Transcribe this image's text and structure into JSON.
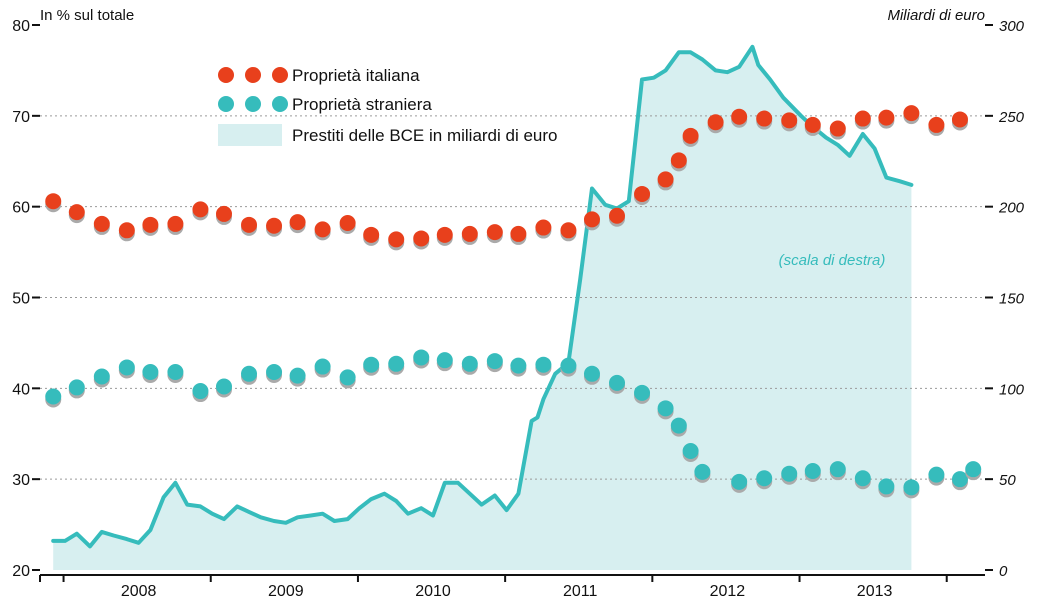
{
  "chart_data": {
    "type": "line",
    "left_axis": {
      "label": "In % sul totale",
      "ticks": [
        "20",
        "30",
        "40",
        "50",
        "60",
        "70",
        "80"
      ],
      "ylim": [
        20,
        80
      ]
    },
    "right_axis": {
      "label": "Miliardi di euro",
      "ticks": [
        "0",
        "50",
        "100",
        "150",
        "200",
        "250",
        "300"
      ],
      "ylim": [
        0,
        300
      ]
    },
    "years": [
      "2008",
      "2009",
      "2010",
      "2011",
      "2012",
      "2013"
    ],
    "series": [
      {
        "name": "Proprietà italiana",
        "style": "dots",
        "axis": "left",
        "color": "#e8401c",
        "points": [
          [
            2007.92,
            60.6
          ],
          [
            2008.08,
            59.4
          ],
          [
            2008.25,
            58.1
          ],
          [
            2008.42,
            57.4
          ],
          [
            2008.58,
            58.0
          ],
          [
            2008.75,
            58.1
          ],
          [
            2008.92,
            59.7
          ],
          [
            2009.08,
            59.2
          ],
          [
            2009.25,
            58.0
          ],
          [
            2009.42,
            57.9
          ],
          [
            2009.58,
            58.3
          ],
          [
            2009.75,
            57.5
          ],
          [
            2009.92,
            58.2
          ],
          [
            2010.08,
            56.9
          ],
          [
            2010.25,
            56.4
          ],
          [
            2010.42,
            56.5
          ],
          [
            2010.58,
            56.9
          ],
          [
            2010.75,
            57.0
          ],
          [
            2010.92,
            57.2
          ],
          [
            2011.08,
            57.0
          ],
          [
            2011.25,
            57.7
          ],
          [
            2011.42,
            57.4
          ],
          [
            2011.58,
            58.6
          ],
          [
            2011.75,
            59.0
          ],
          [
            2011.92,
            61.4
          ],
          [
            2012.08,
            63.0
          ],
          [
            2012.17,
            65.1
          ],
          [
            2012.25,
            67.8
          ],
          [
            2012.42,
            69.3
          ],
          [
            2012.58,
            69.9
          ],
          [
            2012.75,
            69.7
          ],
          [
            2012.92,
            69.5
          ],
          [
            2013.08,
            69.0
          ],
          [
            2013.25,
            68.6
          ],
          [
            2013.42,
            69.7
          ],
          [
            2013.58,
            69.8
          ],
          [
            2013.75,
            70.3
          ],
          [
            2013.92,
            69.0
          ],
          [
            2014.08,
            69.6
          ]
        ]
      },
      {
        "name": "Proprietà straniera",
        "style": "dots",
        "axis": "left",
        "color": "#36bcbc",
        "points": [
          [
            2007.92,
            39.1
          ],
          [
            2008.08,
            40.1
          ],
          [
            2008.25,
            41.3
          ],
          [
            2008.42,
            42.3
          ],
          [
            2008.58,
            41.8
          ],
          [
            2008.75,
            41.8
          ],
          [
            2008.92,
            39.7
          ],
          [
            2009.08,
            40.2
          ],
          [
            2009.25,
            41.6
          ],
          [
            2009.42,
            41.8
          ],
          [
            2009.58,
            41.4
          ],
          [
            2009.75,
            42.4
          ],
          [
            2009.92,
            41.2
          ],
          [
            2010.08,
            42.6
          ],
          [
            2010.25,
            42.7
          ],
          [
            2010.42,
            43.4
          ],
          [
            2010.58,
            43.1
          ],
          [
            2010.75,
            42.7
          ],
          [
            2010.92,
            43.0
          ],
          [
            2011.08,
            42.5
          ],
          [
            2011.25,
            42.6
          ],
          [
            2011.42,
            42.5
          ],
          [
            2011.58,
            41.6
          ],
          [
            2011.75,
            40.6
          ],
          [
            2011.92,
            39.5
          ],
          [
            2012.08,
            37.8
          ],
          [
            2012.17,
            35.9
          ],
          [
            2012.25,
            33.1
          ],
          [
            2012.33,
            30.8
          ],
          [
            2012.58,
            29.7
          ],
          [
            2012.75,
            30.1
          ],
          [
            2012.92,
            30.6
          ],
          [
            2013.08,
            30.9
          ],
          [
            2013.25,
            31.1
          ],
          [
            2013.42,
            30.1
          ],
          [
            2013.58,
            29.2
          ],
          [
            2013.75,
            29.1
          ],
          [
            2013.92,
            30.5
          ],
          [
            2014.08,
            30.0
          ],
          [
            2014.17,
            31.1
          ]
        ]
      },
      {
        "name": "Prestiti delle BCE in miliardi di euro",
        "style": "area",
        "axis": "right",
        "color": "#36bcbc",
        "fill": "#d7eff0",
        "points": [
          [
            2007.92,
            16
          ],
          [
            2008.0,
            16
          ],
          [
            2008.08,
            20
          ],
          [
            2008.17,
            13
          ],
          [
            2008.25,
            21
          ],
          [
            2008.33,
            19
          ],
          [
            2008.42,
            17
          ],
          [
            2008.5,
            15
          ],
          [
            2008.58,
            22
          ],
          [
            2008.67,
            40
          ],
          [
            2008.75,
            48
          ],
          [
            2008.83,
            36
          ],
          [
            2008.92,
            35
          ],
          [
            2009.0,
            31
          ],
          [
            2009.08,
            28
          ],
          [
            2009.17,
            35
          ],
          [
            2009.25,
            32
          ],
          [
            2009.33,
            29
          ],
          [
            2009.42,
            27
          ],
          [
            2009.5,
            26
          ],
          [
            2009.58,
            29
          ],
          [
            2009.67,
            30
          ],
          [
            2009.75,
            31
          ],
          [
            2009.83,
            27
          ],
          [
            2009.92,
            28
          ],
          [
            2010.0,
            34
          ],
          [
            2010.08,
            39
          ],
          [
            2010.17,
            42
          ],
          [
            2010.25,
            38
          ],
          [
            2010.33,
            31
          ],
          [
            2010.42,
            34
          ],
          [
            2010.5,
            30
          ],
          [
            2010.58,
            48
          ],
          [
            2010.67,
            48
          ],
          [
            2010.75,
            42
          ],
          [
            2010.83,
            36
          ],
          [
            2010.92,
            41
          ],
          [
            2011.0,
            33
          ],
          [
            2011.08,
            42
          ],
          [
            2011.17,
            82
          ],
          [
            2011.21,
            84
          ],
          [
            2011.25,
            94
          ],
          [
            2011.33,
            108
          ],
          [
            2011.42,
            114
          ],
          [
            2011.5,
            160
          ],
          [
            2011.58,
            210
          ],
          [
            2011.67,
            201
          ],
          [
            2011.75,
            199
          ],
          [
            2011.83,
            203
          ],
          [
            2011.92,
            270
          ],
          [
            2012.0,
            271
          ],
          [
            2012.08,
            275
          ],
          [
            2012.17,
            285
          ],
          [
            2012.25,
            285
          ],
          [
            2012.33,
            281
          ],
          [
            2012.42,
            275
          ],
          [
            2012.5,
            274
          ],
          [
            2012.58,
            277
          ],
          [
            2012.67,
            288
          ],
          [
            2012.71,
            278
          ],
          [
            2012.79,
            270
          ],
          [
            2012.88,
            260
          ],
          [
            2013.0,
            250
          ],
          [
            2013.08,
            244
          ],
          [
            2013.17,
            238
          ],
          [
            2013.25,
            234
          ],
          [
            2013.33,
            228
          ],
          [
            2013.42,
            240
          ],
          [
            2013.5,
            232
          ],
          [
            2013.58,
            216
          ],
          [
            2013.67,
            214
          ],
          [
            2013.75,
            212
          ]
        ]
      }
    ],
    "annotation": "(scala di destra)"
  }
}
